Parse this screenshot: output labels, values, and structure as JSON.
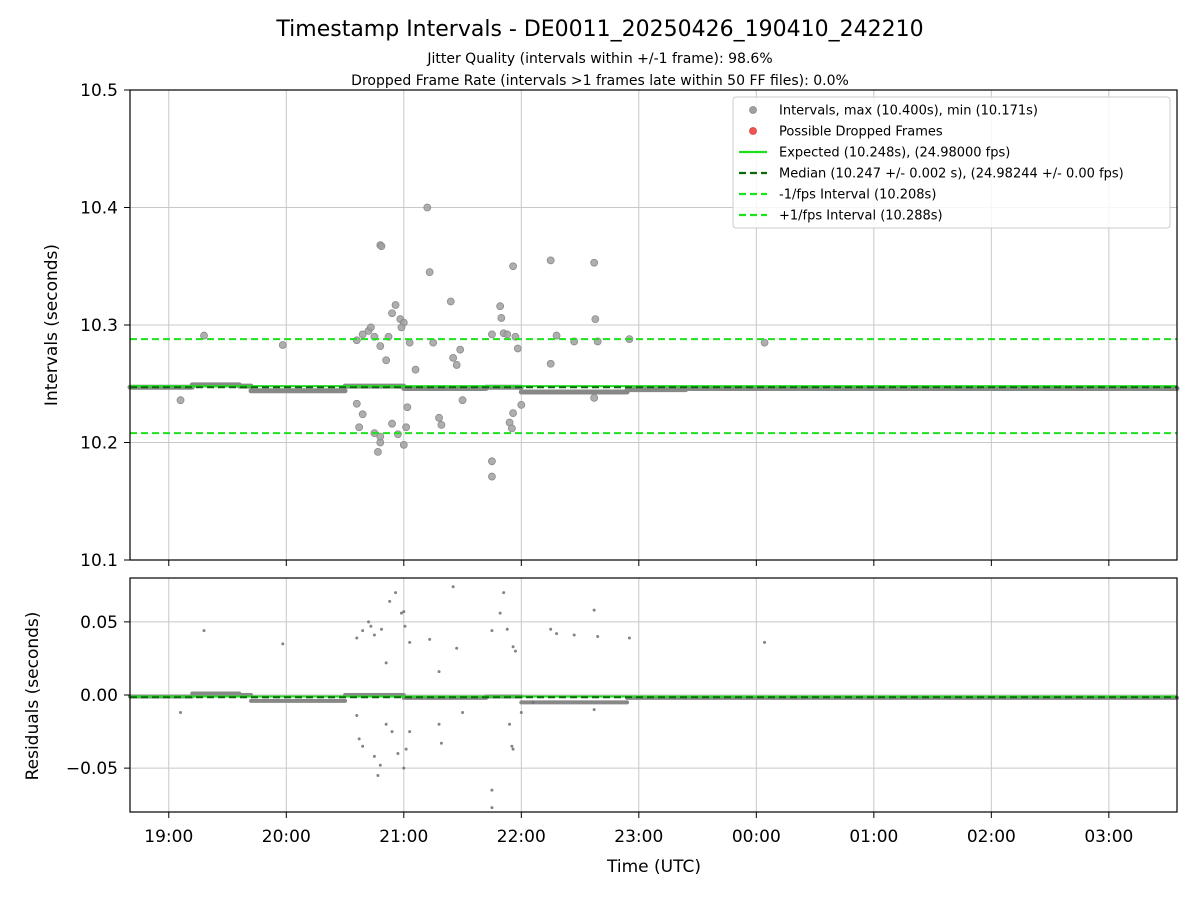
{
  "figure": {
    "title": "Timestamp Intervals - DE0011_20250426_190410_242210",
    "subtitle_1": "Jitter Quality (intervals within +/-1 frame): 98.6%",
    "subtitle_2": "Dropped Frame Rate (intervals >1 frames late within 50 FF files): 0.0%",
    "xlabel": "Time (UTC)"
  },
  "colors": {
    "scatter": "#808080",
    "dropped": "#ef5350",
    "expected": "#1ee11e",
    "median": "#0a6a0a",
    "grid": "#c8c8c8"
  },
  "chart_data": [
    {
      "type": "scatter",
      "name": "intervals",
      "ylabel": "Intervals (seconds)",
      "ylim": [
        10.1,
        10.5
      ],
      "yticks": [
        10.1,
        10.2,
        10.3,
        10.4,
        10.5
      ],
      "ytick_labels": [
        "10.1",
        "10.2",
        "10.3",
        "10.4",
        "10.5"
      ],
      "xlim_hours": [
        18.67,
        27.58
      ],
      "xticks_hours": [
        19,
        20,
        21,
        22,
        23,
        24,
        25,
        26,
        27
      ],
      "xtick_labels": [
        "19:00",
        "20:00",
        "21:00",
        "22:00",
        "23:00",
        "00:00",
        "01:00",
        "02:00",
        "03:00"
      ],
      "grid": true,
      "legend_position": "top-right",
      "legend": [
        {
          "label": "Intervals, max (10.400s), min (10.171s)",
          "kind": "marker",
          "color": "#a0a0a0"
        },
        {
          "label": "Possible Dropped Frames",
          "kind": "marker",
          "color": "#ef5350"
        },
        {
          "label": "Expected (10.248s), (24.98000 fps)",
          "kind": "solid",
          "color": "#1ee11e"
        },
        {
          "label": "Median (10.247 +/- 0.002 s), (24.98244 +/- 0.00 fps)",
          "kind": "dashed",
          "color": "#0a6a0a"
        },
        {
          "label": "-1/fps Interval (10.208s)",
          "kind": "dashed",
          "color": "#1ee11e"
        },
        {
          "label": "+1/fps Interval (10.288s)",
          "kind": "dashed",
          "color": "#1ee11e"
        }
      ],
      "hlines": [
        {
          "y": 10.248,
          "style": "solid",
          "color": "#1ee11e"
        },
        {
          "y": 10.247,
          "style": "dashed",
          "color": "#0a6a0a"
        },
        {
          "y": 10.208,
          "style": "dashed",
          "color": "#1ee11e"
        },
        {
          "y": 10.288,
          "style": "dashed",
          "color": "#1ee11e"
        }
      ],
      "baseline": [
        {
          "x": [
            18.67,
            19.2
          ],
          "y": 10.247
        },
        {
          "x": [
            19.2,
            19.6
          ],
          "y": 10.249
        },
        {
          "x": [
            19.6,
            19.7
          ],
          "y": 10.248
        },
        {
          "x": [
            19.7,
            20.5
          ],
          "y": 10.244
        },
        {
          "x": [
            20.5,
            21.0
          ],
          "y": 10.248
        },
        {
          "x": [
            21.0,
            21.7
          ],
          "y": 10.246
        },
        {
          "x": [
            21.7,
            22.0
          ],
          "y": 10.247
        },
        {
          "x": [
            22.0,
            22.9
          ],
          "y": 10.243
        },
        {
          "x": [
            22.9,
            23.4
          ],
          "y": 10.245
        },
        {
          "x": [
            23.4,
            27.58
          ],
          "y": 10.246
        }
      ],
      "points": [
        [
          19.1,
          10.236
        ],
        [
          19.3,
          10.291
        ],
        [
          19.97,
          10.283
        ],
        [
          20.6,
          10.287
        ],
        [
          20.65,
          10.292
        ],
        [
          20.7,
          10.295
        ],
        [
          20.72,
          10.298
        ],
        [
          20.75,
          10.29
        ],
        [
          20.8,
          10.368
        ],
        [
          20.81,
          10.367
        ],
        [
          20.8,
          10.282
        ],
        [
          20.85,
          10.27
        ],
        [
          20.87,
          10.29
        ],
        [
          20.9,
          10.31
        ],
        [
          20.93,
          10.317
        ],
        [
          20.97,
          10.305
        ],
        [
          21.0,
          10.302
        ],
        [
          20.98,
          10.298
        ],
        [
          21.05,
          10.285
        ],
        [
          21.1,
          10.262
        ],
        [
          21.2,
          10.4
        ],
        [
          21.22,
          10.345
        ],
        [
          21.25,
          10.285
        ],
        [
          21.4,
          10.32
        ],
        [
          21.42,
          10.272
        ],
        [
          21.45,
          10.266
        ],
        [
          21.48,
          10.279
        ],
        [
          21.75,
          10.292
        ],
        [
          21.82,
          10.316
        ],
        [
          21.83,
          10.306
        ],
        [
          21.85,
          10.293
        ],
        [
          21.88,
          10.292
        ],
        [
          21.93,
          10.35
        ],
        [
          21.95,
          10.29
        ],
        [
          21.97,
          10.28
        ],
        [
          22.25,
          10.355
        ],
        [
          22.3,
          10.291
        ],
        [
          22.25,
          10.267
        ],
        [
          22.45,
          10.286
        ],
        [
          22.62,
          10.353
        ],
        [
          22.63,
          10.305
        ],
        [
          22.65,
          10.286
        ],
        [
          22.92,
          10.288
        ],
        [
          24.07,
          10.285
        ],
        [
          20.6,
          10.233
        ],
        [
          20.65,
          10.224
        ],
        [
          20.62,
          10.213
        ],
        [
          20.75,
          10.208
        ],
        [
          20.8,
          10.2
        ],
        [
          20.78,
          10.192
        ],
        [
          20.8,
          10.205
        ],
        [
          20.9,
          10.216
        ],
        [
          20.95,
          10.207
        ],
        [
          21.0,
          10.198
        ],
        [
          21.02,
          10.213
        ],
        [
          21.03,
          10.23
        ],
        [
          21.3,
          10.221
        ],
        [
          21.32,
          10.215
        ],
        [
          21.5,
          10.236
        ],
        [
          21.75,
          10.184
        ],
        [
          21.75,
          10.171
        ],
        [
          21.9,
          10.217
        ],
        [
          21.92,
          10.212
        ],
        [
          21.93,
          10.225
        ],
        [
          22.0,
          10.232
        ],
        [
          22.62,
          10.238
        ]
      ]
    },
    {
      "type": "scatter",
      "name": "residuals",
      "ylabel": "Residuals (seconds)",
      "ylim": [
        -0.08,
        0.08
      ],
      "yticks": [
        -0.05,
        0.0,
        0.05
      ],
      "ytick_labels": [
        "−0.05",
        "0.00",
        "0.05"
      ],
      "grid": true,
      "hlines": [
        {
          "y": -0.001,
          "style": "solid",
          "color": "#1ee11e"
        },
        {
          "y": -0.0015,
          "style": "dashed",
          "color": "#0a6a0a"
        }
      ],
      "baseline": [
        {
          "x": [
            18.67,
            19.2
          ],
          "y": -0.001
        },
        {
          "x": [
            19.2,
            19.6
          ],
          "y": 0.001
        },
        {
          "x": [
            19.6,
            19.7
          ],
          "y": 0.0
        },
        {
          "x": [
            19.7,
            20.5
          ],
          "y": -0.004
        },
        {
          "x": [
            20.5,
            21.0
          ],
          "y": 0.0
        },
        {
          "x": [
            21.0,
            21.7
          ],
          "y": -0.002
        },
        {
          "x": [
            21.7,
            22.0
          ],
          "y": -0.001
        },
        {
          "x": [
            22.0,
            22.9
          ],
          "y": -0.005
        },
        {
          "x": [
            22.9,
            23.4
          ],
          "y": -0.002
        },
        {
          "x": [
            23.4,
            27.58
          ],
          "y": -0.002
        }
      ],
      "points": [
        [
          19.1,
          -0.012
        ],
        [
          19.3,
          0.044
        ],
        [
          19.97,
          0.035
        ],
        [
          20.6,
          0.039
        ],
        [
          20.65,
          0.044
        ],
        [
          20.7,
          0.05
        ],
        [
          20.72,
          0.047
        ],
        [
          20.75,
          0.041
        ],
        [
          20.81,
          0.045
        ],
        [
          20.85,
          0.022
        ],
        [
          20.88,
          0.064
        ],
        [
          20.93,
          0.07
        ],
        [
          20.98,
          0.056
        ],
        [
          21.0,
          0.057
        ],
        [
          21.01,
          0.047
        ],
        [
          21.05,
          0.036
        ],
        [
          21.22,
          0.038
        ],
        [
          21.3,
          0.016
        ],
        [
          21.42,
          0.074
        ],
        [
          21.45,
          0.032
        ],
        [
          21.75,
          0.044
        ],
        [
          21.82,
          0.056
        ],
        [
          21.85,
          0.07
        ],
        [
          21.88,
          0.045
        ],
        [
          21.93,
          0.033
        ],
        [
          21.95,
          0.03
        ],
        [
          22.25,
          0.045
        ],
        [
          22.3,
          0.042
        ],
        [
          22.45,
          0.041
        ],
        [
          22.62,
          0.058
        ],
        [
          22.65,
          0.04
        ],
        [
          22.92,
          0.039
        ],
        [
          24.07,
          0.036
        ],
        [
          20.6,
          -0.014
        ],
        [
          20.62,
          -0.03
        ],
        [
          20.65,
          -0.035
        ],
        [
          20.75,
          -0.042
        ],
        [
          20.78,
          -0.055
        ],
        [
          20.8,
          -0.048
        ],
        [
          20.85,
          -0.02
        ],
        [
          20.9,
          -0.025
        ],
        [
          20.95,
          -0.04
        ],
        [
          21.0,
          -0.05
        ],
        [
          21.02,
          -0.037
        ],
        [
          21.05,
          -0.025
        ],
        [
          21.3,
          -0.02
        ],
        [
          21.32,
          -0.033
        ],
        [
          21.5,
          -0.012
        ],
        [
          21.75,
          -0.065
        ],
        [
          21.75,
          -0.077
        ],
        [
          21.9,
          -0.02
        ],
        [
          21.92,
          -0.035
        ],
        [
          21.93,
          -0.037
        ],
        [
          22.0,
          -0.012
        ],
        [
          22.1,
          -0.005
        ],
        [
          22.62,
          -0.01
        ]
      ]
    }
  ]
}
